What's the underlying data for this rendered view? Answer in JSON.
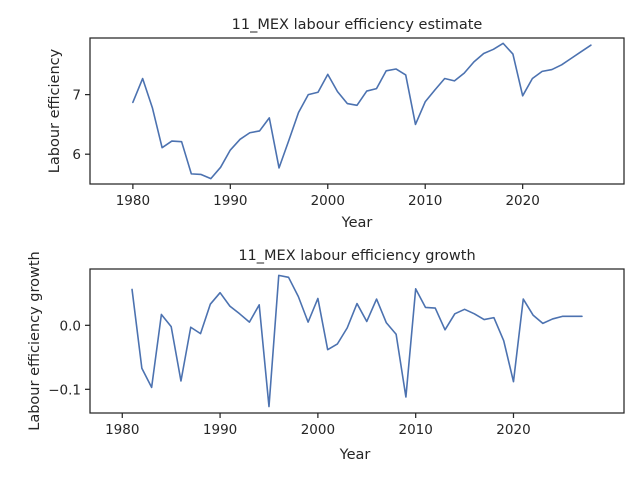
{
  "chart_data": [
    {
      "type": "line",
      "title": "11_MEX labour efficiency estimate",
      "xlabel": "Year",
      "ylabel": "Labour efficiency",
      "xlim": [
        1975.6,
        2030.4
      ],
      "ylim": [
        5.5,
        7.95
      ],
      "xticks": [
        1980,
        1990,
        2000,
        2010,
        2020
      ],
      "xtick_labels": [
        "1980",
        "1990",
        "2000",
        "2010",
        "2020"
      ],
      "yticks": [
        6,
        7
      ],
      "ytick_labels": [
        "6",
        "7"
      ],
      "grid": false,
      "series": [
        {
          "color": "#4c72b0",
          "x": [
            1980,
            1981,
            1982,
            1983,
            1984,
            1985,
            1986,
            1987,
            1988,
            1989,
            1990,
            1991,
            1992,
            1993,
            1994,
            1995,
            1996,
            1997,
            1998,
            1999,
            2000,
            2001,
            2002,
            2003,
            2004,
            2005,
            2006,
            2007,
            2008,
            2009,
            2010,
            2011,
            2012,
            2013,
            2014,
            2015,
            2016,
            2017,
            2018,
            2019,
            2020,
            2021,
            2022,
            2023,
            2024,
            2025,
            2026,
            2027
          ],
          "y": [
            6.87,
            7.27,
            6.78,
            6.11,
            6.22,
            6.21,
            5.67,
            5.66,
            5.59,
            5.78,
            6.07,
            6.25,
            6.36,
            6.39,
            6.61,
            5.77,
            6.23,
            6.7,
            7.0,
            7.04,
            7.34,
            7.05,
            6.85,
            6.82,
            7.06,
            7.1,
            7.4,
            7.43,
            7.33,
            6.5,
            6.88,
            7.08,
            7.27,
            7.23,
            7.36,
            7.55,
            7.69,
            7.76,
            7.86,
            7.68,
            6.98,
            7.27,
            7.39,
            7.42,
            7.5,
            7.61,
            7.72,
            7.83
          ]
        }
      ]
    },
    {
      "type": "line",
      "title": "11_MEX labour efficiency growth",
      "xlabel": "Year",
      "ylabel": "Labour efficiency growth",
      "xlim": [
        1976.7,
        2031.3
      ],
      "ylim": [
        -0.137,
        0.088
      ],
      "xticks": [
        1980,
        1990,
        2000,
        2010,
        2020
      ],
      "xtick_labels": [
        "1980",
        "1990",
        "2000",
        "2010",
        "2020"
      ],
      "yticks": [
        -0.1,
        0.0
      ],
      "ytick_labels": [
        "−0.1",
        "0.0"
      ],
      "grid": false,
      "series": [
        {
          "color": "#4c72b0",
          "x": [
            1981,
            1982,
            1983,
            1984,
            1985,
            1986,
            1987,
            1988,
            1989,
            1990,
            1991,
            1992,
            1993,
            1994,
            1995,
            1996,
            1997,
            1998,
            1999,
            2000,
            2001,
            2002,
            2003,
            2004,
            2005,
            2006,
            2007,
            2008,
            2009,
            2010,
            2011,
            2012,
            2013,
            2014,
            2015,
            2016,
            2017,
            2018,
            2019,
            2020,
            2021,
            2022,
            2023,
            2024,
            2025,
            2026,
            2027
          ],
          "y": [
            0.056,
            -0.067,
            -0.097,
            0.017,
            -0.002,
            -0.087,
            -0.003,
            -0.013,
            0.033,
            0.051,
            0.03,
            0.018,
            0.005,
            0.032,
            -0.127,
            0.078,
            0.075,
            0.045,
            0.005,
            0.042,
            -0.038,
            -0.029,
            -0.004,
            0.034,
            0.006,
            0.041,
            0.004,
            -0.014,
            -0.112,
            0.057,
            0.028,
            0.027,
            -0.007,
            0.018,
            0.025,
            0.018,
            0.009,
            0.012,
            -0.024,
            -0.088,
            0.041,
            0.016,
            0.003,
            0.01,
            0.014,
            0.014,
            0.014
          ]
        }
      ]
    }
  ]
}
